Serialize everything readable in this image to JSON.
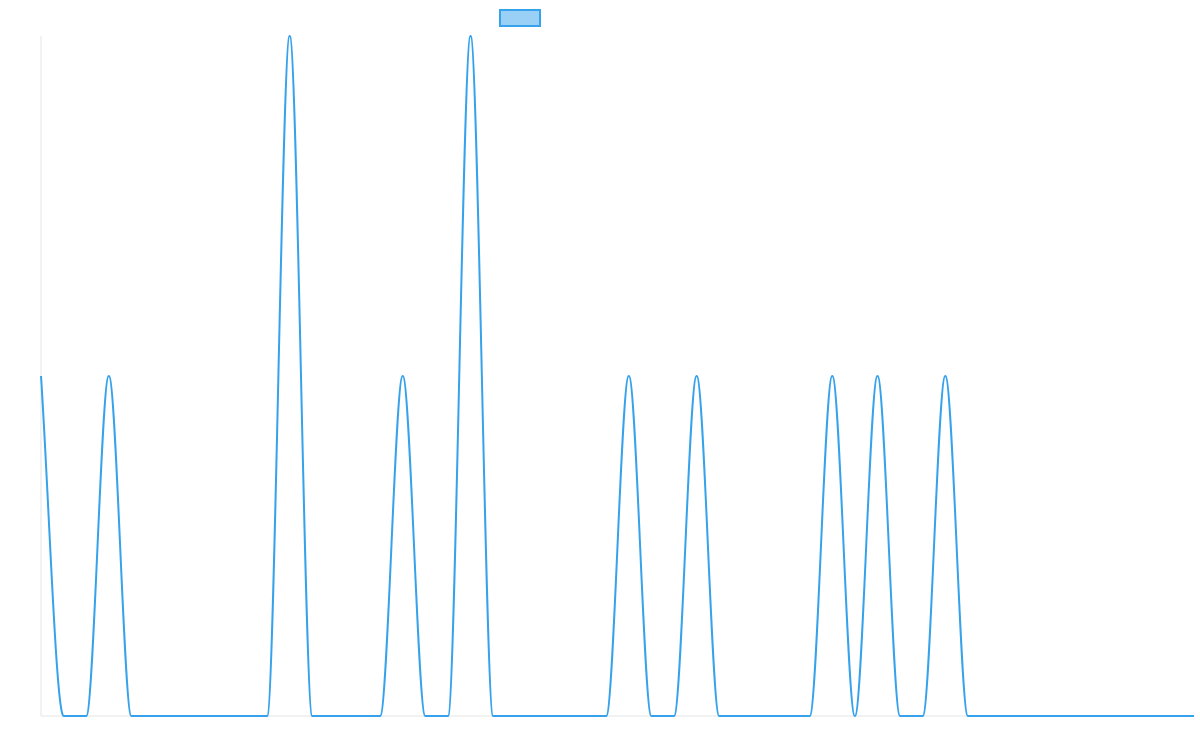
{
  "chart_data": {
    "type": "line",
    "title": "",
    "xlabel": "",
    "ylabel": "",
    "legend": {
      "placement": "top-center",
      "entries": [
        {
          "label": "",
          "color": "#36A2EB",
          "fill": "#9AD0F5"
        }
      ]
    },
    "grid": false,
    "x_range": [
      0,
      51
    ],
    "ylim": [
      0,
      2
    ],
    "series": [
      {
        "color": "#36A2EB",
        "x": [
          0,
          1,
          2,
          3,
          4,
          5,
          6,
          7,
          8,
          9,
          10,
          11,
          12,
          13,
          14,
          15,
          16,
          17,
          18,
          19,
          20,
          21,
          22,
          23,
          24,
          25,
          26,
          27,
          28,
          29,
          30,
          31,
          32,
          33,
          34,
          35,
          36,
          37,
          38,
          39,
          40,
          41,
          42,
          43,
          44,
          45,
          46,
          47,
          48,
          49,
          50,
          51
        ],
        "values": [
          1,
          0,
          0,
          1,
          0,
          0,
          0,
          0,
          0,
          0,
          0,
          2,
          0,
          0,
          0,
          0,
          1,
          0,
          0,
          2,
          0,
          0,
          0,
          0,
          0,
          0,
          1,
          0,
          0,
          1,
          0,
          0,
          0,
          0,
          0,
          1,
          0,
          1,
          0,
          0,
          1,
          0,
          0,
          0,
          0,
          0,
          0,
          0,
          0,
          0,
          0,
          0
        ]
      }
    ]
  }
}
